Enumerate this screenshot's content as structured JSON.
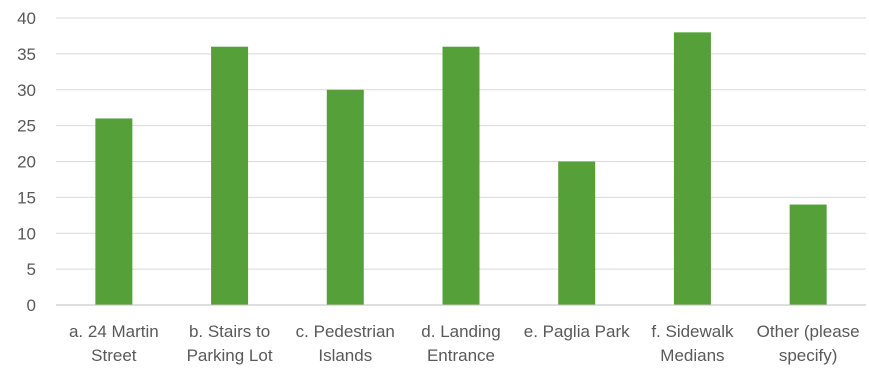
{
  "chart_data": {
    "type": "bar",
    "categories": [
      [
        "a. 24 Martin",
        "Street"
      ],
      [
        "b. Stairs to",
        "Parking Lot"
      ],
      [
        "c. Pedestrian",
        "Islands"
      ],
      [
        "d. Landing",
        "Entrance"
      ],
      [
        "e. Paglia Park"
      ],
      [
        "f. Sidewalk",
        "Medians"
      ],
      [
        "Other (please",
        "specify)"
      ]
    ],
    "values": [
      26,
      36,
      30,
      36,
      20,
      38,
      14
    ],
    "title": "",
    "xlabel": "",
    "ylabel": "",
    "ylim": [
      0,
      40
    ],
    "yticks": [
      0,
      5,
      10,
      15,
      20,
      25,
      30,
      35,
      40
    ],
    "grid": true,
    "legend": "none",
    "colors": {
      "bar": "#56a03a",
      "grid": "#d9d9d9",
      "axis": "#bfbfbf",
      "text": "#595959"
    }
  }
}
